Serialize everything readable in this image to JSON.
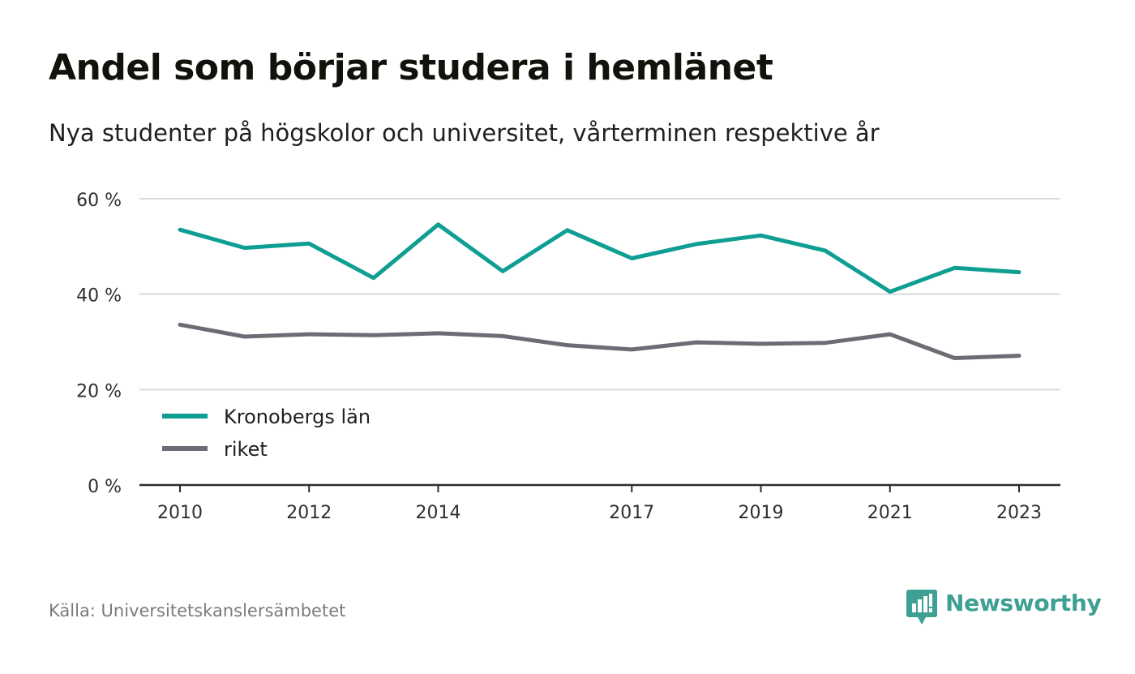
{
  "title": "Andel som börjar studera i hemlänet",
  "subtitle": "Nya studenter på högskolor och universitet, vårterminen respektive år",
  "source": "Källa: Universitetskanslersämbetet",
  "brand": {
    "name": "Newsworthy",
    "icon": "newsworthy-logo-icon",
    "color": "#3e9f93"
  },
  "chart_data": {
    "type": "line",
    "x": [
      2010,
      2011,
      2012,
      2013,
      2014,
      2015,
      2016,
      2017,
      2018,
      2019,
      2020,
      2021,
      2022,
      2023
    ],
    "x_tick_labels": [
      "2010",
      "2012",
      "2014",
      "2017",
      "2019",
      "2021",
      "2023"
    ],
    "y_tick_labels": [
      "0 %",
      "20 %",
      "40 %",
      "60 %"
    ],
    "y_ticks": [
      0,
      20,
      40,
      60
    ],
    "ylim": [
      0,
      60
    ],
    "grid": true,
    "legend_position": "bottom-left",
    "series": [
      {
        "name": "Kronobergs län",
        "color": "#0e9e93",
        "values": [
          53.5,
          49.7,
          50.6,
          43.4,
          54.6,
          44.8,
          53.4,
          47.5,
          50.5,
          52.3,
          49.1,
          40.5,
          45.5,
          44.6
        ]
      },
      {
        "name": "riket",
        "color": "#6d6c74",
        "values": [
          33.6,
          31.1,
          31.6,
          31.4,
          31.8,
          31.2,
          29.3,
          28.4,
          29.9,
          29.6,
          29.8,
          31.6,
          26.6,
          27.1
        ]
      }
    ]
  }
}
